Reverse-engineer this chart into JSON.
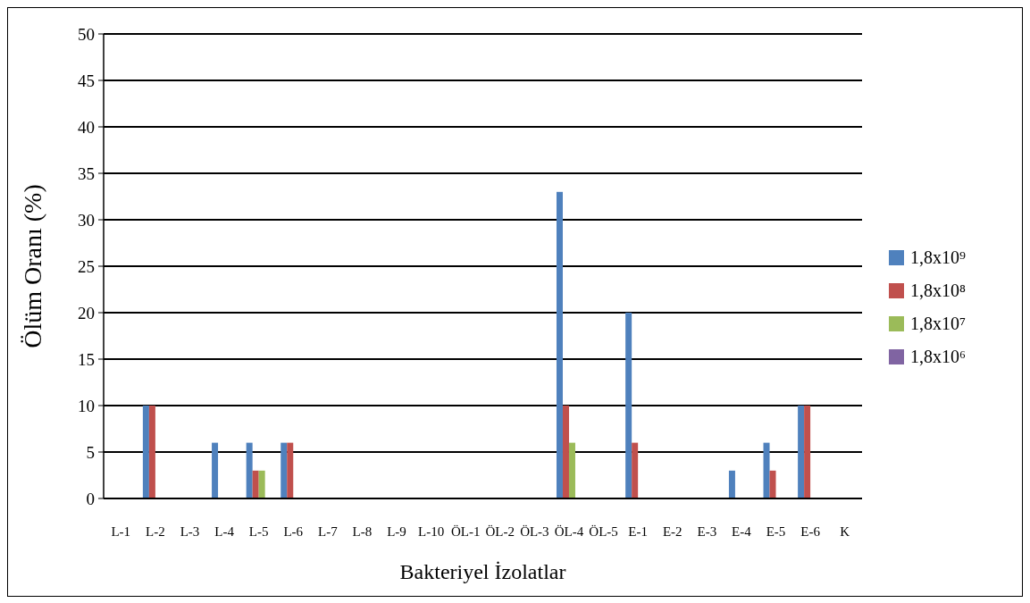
{
  "chart_data": {
    "type": "bar",
    "xlabel": "Bakteriyel İzolatlar",
    "ylabel": "Ölüm Oranı (%)",
    "categories": [
      "L-1",
      "L-2",
      "L-3",
      "L-4",
      "L-5",
      "L-6",
      "L-7",
      "L-8",
      "L-9",
      "L-10",
      "ÖL-1",
      "ÖL-2",
      "ÖL-3",
      "ÖL-4",
      "ÖL-5",
      "E-1",
      "E-2",
      "E-3",
      "E-4",
      "E-5",
      "E-6",
      "K"
    ],
    "series": [
      {
        "name": "1,8x10⁹",
        "color": "#4f81bd",
        "values": [
          0,
          10,
          0,
          6,
          6,
          6,
          0,
          0,
          0,
          0,
          0,
          0,
          0,
          33,
          0,
          20,
          0,
          0,
          3,
          6,
          10,
          0
        ]
      },
      {
        "name": "1,8x10⁸",
        "color": "#c0504d",
        "values": [
          0,
          10,
          0,
          0,
          3,
          6,
          0,
          0,
          0,
          0,
          0,
          0,
          0,
          10,
          0,
          6,
          0,
          0,
          0,
          3,
          10,
          0
        ]
      },
      {
        "name": "1,8x10⁷",
        "color": "#9bbb59",
        "values": [
          0,
          0,
          0,
          0,
          3,
          0,
          0,
          0,
          0,
          0,
          0,
          0,
          0,
          6,
          0,
          0,
          0,
          0,
          0,
          0,
          0,
          0
        ]
      },
      {
        "name": "1,8x10⁶",
        "color": "#8064a2",
        "values": [
          0,
          0,
          0,
          0,
          0,
          0,
          0,
          0,
          0,
          0,
          0,
          0,
          0,
          0,
          0,
          0,
          0,
          0,
          0,
          0,
          0,
          0
        ]
      }
    ],
    "ylim": [
      0,
      50
    ],
    "yticks": [
      0,
      5,
      10,
      15,
      20,
      25,
      30,
      35,
      40,
      45,
      50
    ],
    "grid": "y",
    "legend": "right"
  }
}
